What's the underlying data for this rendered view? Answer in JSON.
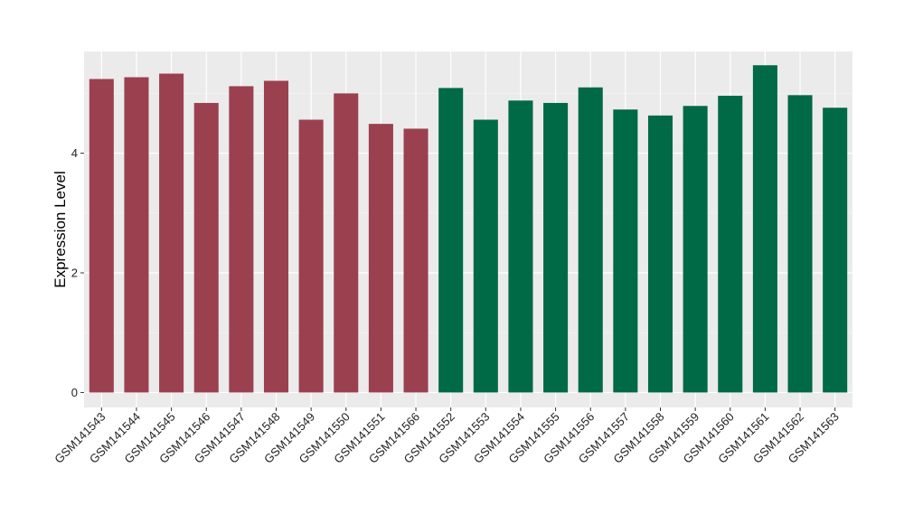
{
  "chart_data": {
    "type": "bar",
    "title": "",
    "xlabel": "",
    "ylabel": "Expression Level",
    "ylim": [
      -0.25,
      5.7
    ],
    "yticks": [
      0,
      2,
      4
    ],
    "grid": true,
    "legend": "none",
    "categories": [
      "GSM141543",
      "GSM141544",
      "GSM141545",
      "GSM141546",
      "GSM141547",
      "GSM141548",
      "GSM141549",
      "GSM141550",
      "GSM141551",
      "GSM141566",
      "GSM141552",
      "GSM141553",
      "GSM141554",
      "GSM141555",
      "GSM141556",
      "GSM141557",
      "GSM141558",
      "GSM141559",
      "GSM141560",
      "GSM141561",
      "GSM141562",
      "GSM141563"
    ],
    "values": [
      5.24,
      5.27,
      5.33,
      4.84,
      5.12,
      5.21,
      4.56,
      5.0,
      4.49,
      4.41,
      5.09,
      4.56,
      4.88,
      4.84,
      5.1,
      4.73,
      4.63,
      4.79,
      4.96,
      5.47,
      4.97,
      4.76
    ],
    "groups": [
      0,
      0,
      0,
      0,
      0,
      0,
      0,
      0,
      0,
      0,
      1,
      1,
      1,
      1,
      1,
      1,
      1,
      1,
      1,
      1,
      1,
      1
    ],
    "colors": {
      "group_0": "#9b404f",
      "group_1": "#006946",
      "panel_background": "#ebebeb",
      "grid_major": "#ffffff",
      "grid_minor": "#f5f5f5"
    }
  }
}
